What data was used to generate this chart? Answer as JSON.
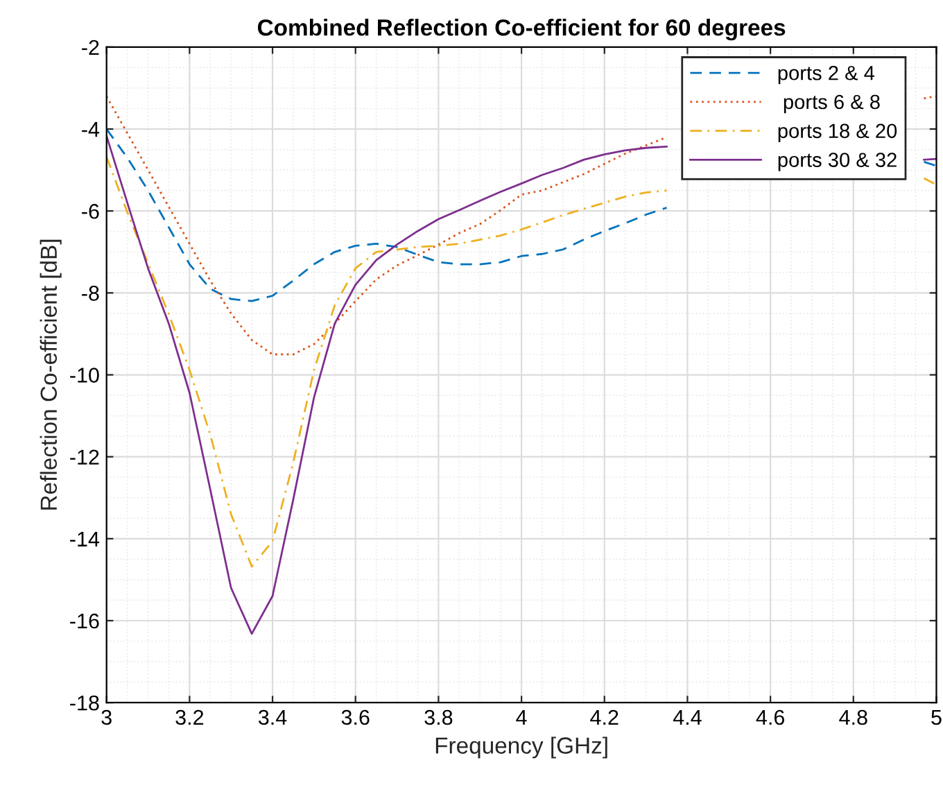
{
  "chart_data": {
    "type": "line",
    "title": "Combined Reflection Co-efficient for 60 degrees",
    "xlabel": "Frequency [GHz]",
    "ylabel": "Reflection Co-efficient [dB]",
    "x": [
      3.0,
      3.05,
      3.1,
      3.15,
      3.2,
      3.25,
      3.3,
      3.35,
      3.4,
      3.45,
      3.5,
      3.55,
      3.6,
      3.65,
      3.7,
      3.75,
      3.8,
      3.85,
      3.9,
      3.95,
      4.0,
      4.05,
      4.1,
      4.15,
      4.2,
      4.25,
      4.3,
      4.35,
      4.4,
      4.45,
      4.5,
      4.55,
      4.6,
      4.65,
      4.7,
      4.75,
      4.8,
      4.85,
      4.9,
      4.95,
      4.97,
      5.0
    ],
    "series": [
      {
        "name": "ports 2 & 4",
        "color": "#0072bd",
        "line_style": "dashed",
        "values": [
          -4.0,
          -4.7,
          -5.5,
          -6.4,
          -7.3,
          -7.9,
          -8.15,
          -8.2,
          -8.07,
          -7.7,
          -7.3,
          -7.0,
          -6.85,
          -6.8,
          -6.88,
          -7.07,
          -7.25,
          -7.3,
          -7.3,
          -7.25,
          -7.1,
          -7.05,
          -6.94,
          -6.7,
          -6.49,
          -6.3,
          -6.09,
          -5.92,
          null,
          null,
          null,
          null,
          null,
          null,
          null,
          null,
          null,
          null,
          null,
          null,
          -4.8,
          -4.9
        ]
      },
      {
        "name": " ports 6 & 8",
        "color": "#d95319",
        "line_style": "dotted",
        "values": [
          -3.2,
          -4.1,
          -5.0,
          -5.9,
          -6.8,
          -7.7,
          -8.5,
          -9.15,
          -9.5,
          -9.5,
          -9.25,
          -8.75,
          -8.2,
          -7.67,
          -7.33,
          -7.08,
          -6.82,
          -6.54,
          -6.32,
          -5.98,
          -5.6,
          -5.5,
          -5.3,
          -5.1,
          -4.85,
          -4.6,
          -4.4,
          -4.2,
          null,
          null,
          null,
          null,
          null,
          null,
          null,
          null,
          null,
          null,
          null,
          null,
          -3.25,
          -3.2
        ]
      },
      {
        "name": "ports 18 & 20",
        "color": "#edb120",
        "line_style": "dashdot",
        "values": [
          -4.68,
          -6.03,
          -7.28,
          -8.52,
          -9.88,
          -11.46,
          -13.4,
          -14.68,
          -14.06,
          -12.14,
          -9.88,
          -8.3,
          -7.4,
          -7.0,
          -6.94,
          -6.88,
          -6.85,
          -6.8,
          -6.7,
          -6.6,
          -6.45,
          -6.28,
          -6.1,
          -5.95,
          -5.8,
          -5.65,
          -5.55,
          -5.5,
          null,
          null,
          null,
          null,
          null,
          null,
          null,
          null,
          null,
          null,
          null,
          null,
          -5.2,
          -5.36
        ]
      },
      {
        "name": "ports 30 & 32",
        "color": "#7e2f8e",
        "line_style": "solid",
        "values": [
          -4.17,
          -5.8,
          -7.4,
          -8.75,
          -10.44,
          -12.8,
          -15.2,
          -16.32,
          -15.4,
          -13.04,
          -10.55,
          -8.75,
          -7.8,
          -7.2,
          -6.82,
          -6.49,
          -6.2,
          -5.98,
          -5.75,
          -5.53,
          -5.33,
          -5.12,
          -4.95,
          -4.75,
          -4.62,
          -4.52,
          -4.46,
          -4.43,
          null,
          null,
          null,
          null,
          null,
          null,
          null,
          null,
          null,
          null,
          null,
          null,
          -4.75,
          -4.73
        ]
      }
    ],
    "xlim": [
      3,
      5
    ],
    "xticks": [
      3,
      3.2,
      3.4,
      3.6,
      3.8,
      4,
      4.2,
      4.4,
      4.6,
      4.8,
      5
    ],
    "ylim": [
      -18,
      -2
    ],
    "yticks": [
      {
        "value": -18,
        "label": "-18"
      },
      {
        "value": -16,
        "label": "-16"
      },
      {
        "value": -14,
        "label": "-14"
      },
      {
        "value": -12,
        "label": "-12"
      },
      {
        "value": -10,
        "label": "-10"
      },
      {
        "value": -8,
        "label": "-8"
      },
      {
        "value": -6,
        "label": "-6"
      },
      {
        "value": -4,
        "label": "-4"
      },
      {
        "value": -2,
        "label": "-2"
      }
    ],
    "grid": true,
    "legend": "top right",
    "marker": "none"
  }
}
